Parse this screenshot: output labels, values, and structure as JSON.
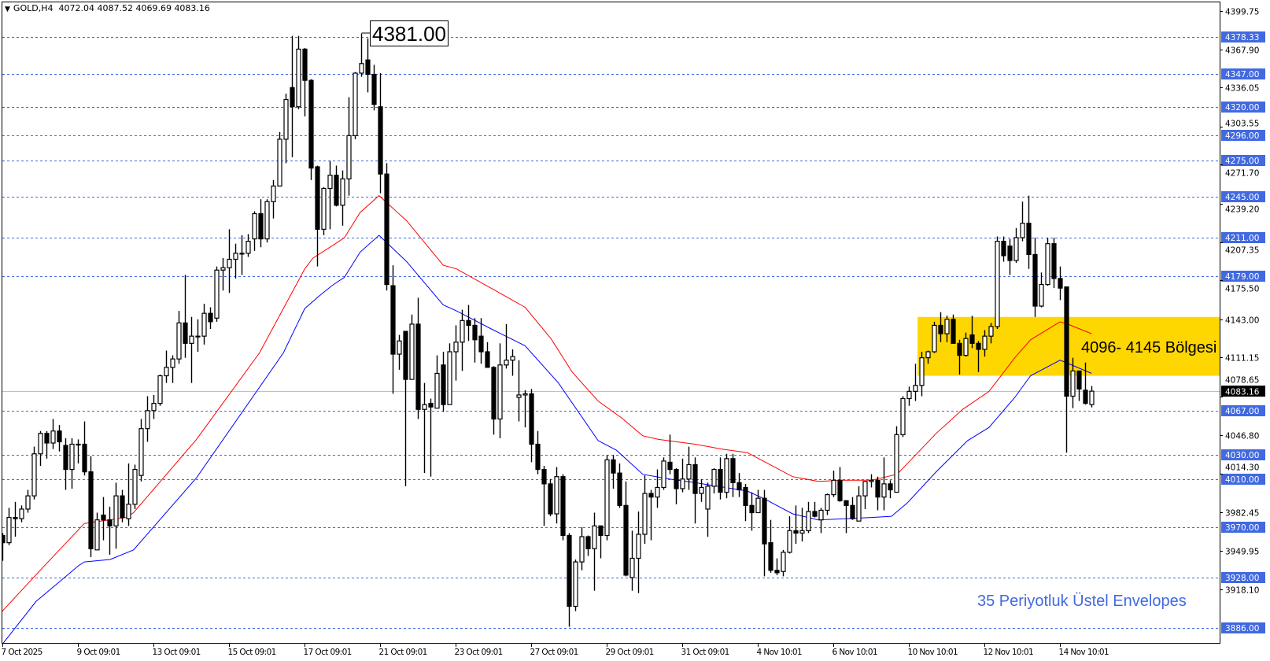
{
  "header": {
    "symbol": "GOLD,H4",
    "ohlc_text": "4072.04 4087.52 4069.69 4083.16"
  },
  "colors": {
    "level_line": "#4169E1",
    "level_label_bg": "#4169E1",
    "upper_envelope": "#FF0000",
    "lower_envelope": "#0000FF",
    "zone_fill": "#FFD700",
    "current_price_line": "#C0C0C0",
    "current_price_label_bg": "#000000",
    "note_text": "#4169E1"
  },
  "chart_data": {
    "type": "candlestick",
    "timeframe": "H4",
    "ylim": [
      3886.0,
      4399.75
    ],
    "grid": false,
    "y_ticks": [
      "4399.75",
      "4367.90",
      "4336.05",
      "4303.55",
      "4271.70",
      "4239.20",
      "4207.35",
      "4175.50",
      "4143.00",
      "4111.15",
      "4078.65",
      "4046.80",
      "4014.30",
      "3982.45",
      "3949.95",
      "3918.10"
    ],
    "x_ticks": [
      {
        "bar": 0,
        "label": "7 Oct 2025"
      },
      {
        "bar": 12,
        "label": "9 Oct 09:01"
      },
      {
        "bar": 24,
        "label": "13 Oct 09:01"
      },
      {
        "bar": 36,
        "label": "15 Oct 09:01"
      },
      {
        "bar": 48,
        "label": "17 Oct 09:01"
      },
      {
        "bar": 60,
        "label": "21 Oct 09:01"
      },
      {
        "bar": 72,
        "label": "23 Oct 09:01"
      },
      {
        "bar": 84,
        "label": "27 Oct 09:01"
      },
      {
        "bar": 96,
        "label": "29 Oct 09:01"
      },
      {
        "bar": 108,
        "label": "31 Oct 09:01"
      },
      {
        "bar": 120,
        "label": "4 Nov 10:01"
      },
      {
        "bar": 132,
        "label": "6 Nov 10:01"
      },
      {
        "bar": 144,
        "label": "10 Nov 10:01"
      },
      {
        "bar": 156,
        "label": "12 Nov 10:01"
      },
      {
        "bar": 168,
        "label": "14 Nov 10:01"
      }
    ],
    "ohlc": [
      [
        3963,
        3965,
        3942,
        3957
      ],
      [
        3957,
        3986,
        3955,
        3978
      ],
      [
        3978,
        3991,
        3962,
        3977
      ],
      [
        3977,
        3988,
        3974,
        3985
      ],
      [
        3985,
        4001,
        3982,
        3996
      ],
      [
        3996,
        4037,
        3993,
        4031
      ],
      [
        4031,
        4050,
        4021,
        4048
      ],
      [
        4048,
        4050,
        4027,
        4040
      ],
      [
        4040,
        4060,
        4035,
        4050
      ],
      [
        4050,
        4055,
        4033,
        4041
      ],
      [
        4038,
        4044,
        4001,
        4018
      ],
      [
        4018,
        4044,
        4002,
        4039
      ],
      [
        4039,
        4043,
        4023,
        4039
      ],
      [
        4039,
        4058,
        4013,
        4016
      ],
      [
        4016,
        4029,
        3945,
        3952
      ],
      [
        3951,
        3982,
        3951,
        3976
      ],
      [
        3980,
        3995,
        3959,
        3976
      ],
      [
        3976,
        3987,
        3947,
        3971
      ],
      [
        3971,
        4007,
        3952,
        3996
      ],
      [
        3996,
        4001,
        3974,
        3978
      ],
      [
        3977,
        4023,
        3971,
        3989
      ],
      [
        3989,
        4022,
        3985,
        4018
      ],
      [
        4013,
        4060,
        4008,
        4052
      ],
      [
        4052,
        4079,
        4041,
        4067
      ],
      [
        4067,
        4080,
        4060,
        4073
      ],
      [
        4073,
        4097,
        4071,
        4096
      ],
      [
        4096,
        4117,
        4090,
        4103
      ],
      [
        4103,
        4113,
        4090,
        4110
      ],
      [
        4110,
        4150,
        4106,
        4140
      ],
      [
        4140,
        4180,
        4111,
        4123
      ],
      [
        4123,
        4145,
        4090,
        4129
      ],
      [
        4129,
        4143,
        4116,
        4129
      ],
      [
        4129,
        4156,
        4122,
        4148
      ],
      [
        4148,
        4153,
        4135,
        4141
      ],
      [
        4144,
        4187,
        4141,
        4184
      ],
      [
        4184,
        4194,
        4167,
        4186
      ],
      [
        4186,
        4218,
        4165,
        4193
      ],
      [
        4193,
        4206,
        4177,
        4198
      ],
      [
        4198,
        4213,
        4180,
        4198
      ],
      [
        4198,
        4214,
        4195,
        4208
      ],
      [
        4210,
        4233,
        4200,
        4231
      ],
      [
        4231,
        4243,
        4203,
        4210
      ],
      [
        4210,
        4243,
        4207,
        4241
      ],
      [
        4241,
        4259,
        4227,
        4254
      ],
      [
        4254,
        4299,
        4254,
        4293
      ],
      [
        4293,
        4331,
        4273,
        4326
      ],
      [
        4336,
        4379,
        4278,
        4320
      ],
      [
        4320,
        4379,
        4318,
        4368
      ],
      [
        4368,
        4369,
        4312,
        4342
      ],
      [
        4342,
        4343,
        4259,
        4269
      ],
      [
        4270,
        4271,
        4187,
        4218
      ],
      [
        4218,
        4253,
        4213,
        4252
      ],
      [
        4252,
        4275,
        4218,
        4263
      ],
      [
        4263,
        4271,
        4237,
        4238
      ],
      [
        4238,
        4267,
        4221,
        4260
      ],
      [
        4260,
        4328,
        4246,
        4296
      ],
      [
        4296,
        4349,
        4293,
        4348
      ],
      [
        4348,
        4381,
        4345,
        4356
      ],
      [
        4359,
        4377,
        4332,
        4347
      ],
      [
        4347,
        4355,
        4317,
        4322
      ],
      [
        4320,
        4348,
        4248,
        4264
      ],
      [
        4264,
        4273,
        4167,
        4172
      ],
      [
        4171,
        4188,
        4081,
        4114
      ],
      [
        4114,
        4130,
        4101,
        4125
      ],
      [
        4133,
        4133,
        4004,
        4093
      ],
      [
        4093,
        4147,
        4093,
        4139
      ],
      [
        4139,
        4161,
        4060,
        4068
      ],
      [
        4068,
        4090,
        4015,
        4072
      ],
      [
        4073,
        4077,
        4012,
        4070
      ],
      [
        4069,
        4113,
        4069,
        4098
      ],
      [
        4105,
        4116,
        4066,
        4072
      ],
      [
        4072,
        4123,
        4072,
        4116
      ],
      [
        4116,
        4138,
        4092,
        4124
      ],
      [
        4124,
        4151,
        4100,
        4142
      ],
      [
        4142,
        4155,
        4125,
        4138
      ],
      [
        4138,
        4144,
        4107,
        4126
      ],
      [
        4129,
        4144,
        4106,
        4116
      ],
      [
        4116,
        4124,
        4103,
        4103
      ],
      [
        4103,
        4104,
        4047,
        4060
      ],
      [
        4060,
        4123,
        4044,
        4105
      ],
      [
        4105,
        4139,
        4102,
        4109
      ],
      [
        4109,
        4118,
        4096,
        4112
      ],
      [
        4078,
        4109,
        4058,
        4080
      ],
      [
        4080,
        4084,
        4053,
        4081
      ],
      [
        4081,
        4085,
        4024,
        4039
      ],
      [
        4039,
        4050,
        4014,
        4018
      ],
      [
        4018,
        4021,
        3971,
        4006
      ],
      [
        4006,
        4010,
        3979,
        3981
      ],
      [
        3981,
        4020,
        3973,
        4012
      ],
      [
        4012,
        4014,
        3959,
        3963
      ],
      [
        3963,
        3965,
        3887,
        3904
      ],
      [
        3904,
        3943,
        3900,
        3941
      ],
      [
        3941,
        3970,
        3934,
        3962
      ],
      [
        3962,
        3963,
        3946,
        3952
      ],
      [
        3952,
        3982,
        3917,
        3971
      ],
      [
        3971,
        3971,
        3944,
        3963
      ],
      [
        3963,
        4030,
        3959,
        4026
      ],
      [
        4026,
        4030,
        4002,
        4015
      ],
      [
        4015,
        4023,
        3986,
        3988
      ],
      [
        3988,
        4008,
        3929,
        3930
      ],
      [
        3928,
        3967,
        3917,
        3944
      ],
      [
        3944,
        3983,
        3915,
        3964
      ],
      [
        3964,
        4013,
        3956,
        3998
      ],
      [
        3998,
        4001,
        3959,
        3995
      ],
      [
        3995,
        4018,
        3986,
        4003
      ],
      [
        4003,
        4028,
        4001,
        4025
      ],
      [
        4024,
        4047,
        4014,
        4018
      ],
      [
        4018,
        4019,
        3989,
        4002
      ],
      [
        4002,
        4027,
        3999,
        4010
      ],
      [
        4010,
        4037,
        4001,
        4022
      ],
      [
        4022,
        4028,
        3973,
        3998
      ],
      [
        3998,
        4010,
        3991,
        4003
      ],
      [
        3985,
        4007,
        3962,
        4004
      ],
      [
        4004,
        4019,
        3998,
        4018
      ],
      [
        4018,
        4028,
        3993,
        3999
      ],
      [
        3999,
        4031,
        3994,
        4027
      ],
      [
        4027,
        4031,
        3995,
        4007
      ],
      [
        4007,
        4015,
        3995,
        4001
      ],
      [
        4003,
        4006,
        3975,
        3988
      ],
      [
        3988,
        3999,
        3967,
        3982
      ],
      [
        3982,
        4001,
        3982,
        3994
      ],
      [
        3994,
        4001,
        3929,
        3956
      ],
      [
        3957,
        3976,
        3932,
        3934
      ],
      [
        3934,
        3944,
        3930,
        3932
      ],
      [
        3933,
        3951,
        3929,
        3949
      ],
      [
        3949,
        3979,
        3948,
        3967
      ],
      [
        3967,
        3988,
        3956,
        3965
      ],
      [
        3965,
        3986,
        3958,
        3967
      ],
      [
        3967,
        3991,
        3965,
        3983
      ],
      [
        3983,
        3991,
        3978,
        3979
      ],
      [
        3976,
        3986,
        3965,
        3984
      ],
      [
        3984,
        3998,
        3980,
        3997
      ],
      [
        3997,
        4017,
        3995,
        4009
      ],
      [
        4009,
        4020,
        3991,
        3992
      ],
      [
        3992,
        3992,
        3965,
        3988
      ],
      [
        3988,
        3995,
        3976,
        3977
      ],
      [
        3975,
        4004,
        3975,
        3996
      ],
      [
        3996,
        4008,
        3985,
        4008
      ],
      [
        4008,
        4014,
        4003,
        4009
      ],
      [
        4009,
        4012,
        3984,
        3995
      ],
      [
        3995,
        4028,
        3984,
        4006
      ],
      [
        4006,
        4009,
        3994,
        4001
      ],
      [
        3999,
        4054,
        3999,
        4047
      ],
      [
        4047,
        4079,
        4045,
        4077
      ],
      [
        4077,
        4087,
        4071,
        4083
      ],
      [
        4083,
        4106,
        4075,
        4088
      ],
      [
        4088,
        4116,
        4079,
        4111
      ],
      [
        4111,
        4117,
        4106,
        4116
      ],
      [
        4116,
        4141,
        4115,
        4138
      ],
      [
        4138,
        4149,
        4124,
        4131
      ],
      [
        4131,
        4146,
        4124,
        4143
      ],
      [
        4143,
        4147,
        4123,
        4123
      ],
      [
        4123,
        4126,
        4097,
        4113
      ],
      [
        4113,
        4132,
        4112,
        4127
      ],
      [
        4130,
        4146,
        4119,
        4123
      ],
      [
        4123,
        4125,
        4099,
        4118
      ],
      [
        4118,
        4134,
        4112,
        4129
      ],
      [
        4129,
        4140,
        4123,
        4137
      ],
      [
        4137,
        4212,
        4135,
        4208
      ],
      [
        4208,
        4212,
        4191,
        4196
      ],
      [
        4204,
        4210,
        4180,
        4192
      ],
      [
        4192,
        4219,
        4190,
        4211
      ],
      [
        4211,
        4241,
        4208,
        4223
      ],
      [
        4223,
        4246,
        4185,
        4197
      ],
      [
        4197,
        4211,
        4145,
        4154
      ],
      [
        4154,
        4182,
        4153,
        4172
      ],
      [
        4172,
        4211,
        4171,
        4206
      ],
      [
        4206,
        4211,
        4169,
        4177
      ],
      [
        4177,
        4187,
        4159,
        4169
      ],
      [
        4170,
        4170,
        4032,
        4079
      ],
      [
        4079,
        4111,
        4069,
        4100
      ],
      [
        4100,
        4100,
        4075,
        4085
      ],
      [
        4084,
        4107,
        4072,
        4073
      ],
      [
        4072.04,
        4087.52,
        4069.69,
        4083.16
      ]
    ],
    "envelopes": {
      "upper": [
        [
          -0.4,
          3898
        ],
        [
          6.5,
          3937
        ],
        [
          13,
          3973
        ],
        [
          19.6,
          3978
        ],
        [
          20.8,
          3982
        ],
        [
          30.8,
          4043
        ],
        [
          40.8,
          4115
        ],
        [
          48,
          4185
        ],
        [
          49.3,
          4194
        ],
        [
          52.3,
          4204
        ],
        [
          54.3,
          4211
        ],
        [
          56.8,
          4232
        ],
        [
          59.8,
          4246
        ],
        [
          64.2,
          4225
        ],
        [
          70,
          4188
        ],
        [
          72.1,
          4185
        ],
        [
          78.6,
          4166
        ],
        [
          83,
          4153
        ],
        [
          87.1,
          4127
        ],
        [
          90.5,
          4099
        ],
        [
          94.6,
          4075
        ],
        [
          98.3,
          4061
        ],
        [
          101.7,
          4046
        ],
        [
          104.2,
          4043
        ],
        [
          110,
          4039
        ],
        [
          114.2,
          4035
        ],
        [
          118.3,
          4032
        ],
        [
          121.2,
          4024
        ],
        [
          125.5,
          4012
        ],
        [
          129.6,
          4008
        ],
        [
          133.7,
          4009
        ],
        [
          138,
          4009
        ],
        [
          142.1,
          4014
        ],
        [
          148.3,
          4048
        ],
        [
          152.5,
          4068
        ],
        [
          156.7,
          4083
        ],
        [
          160.8,
          4111
        ],
        [
          163.3,
          4126
        ],
        [
          168,
          4141
        ],
        [
          169.2,
          4139
        ],
        [
          173,
          4131
        ]
      ],
      "lower": [
        [
          -0.4,
          3870
        ],
        [
          5.3,
          3908
        ],
        [
          12.1,
          3938
        ],
        [
          13,
          3941
        ],
        [
          17.1,
          3943
        ],
        [
          20.8,
          3951
        ],
        [
          30.8,
          4011
        ],
        [
          44.6,
          4115
        ],
        [
          48,
          4152
        ],
        [
          50.2,
          4162
        ],
        [
          52.3,
          4171
        ],
        [
          54.3,
          4178
        ],
        [
          56.8,
          4199
        ],
        [
          59.8,
          4213
        ],
        [
          64.2,
          4191
        ],
        [
          70,
          4155
        ],
        [
          72.1,
          4150
        ],
        [
          78,
          4134
        ],
        [
          83,
          4121
        ],
        [
          88.3,
          4090
        ],
        [
          94.6,
          4042
        ],
        [
          97.5,
          4034
        ],
        [
          101.7,
          4014
        ],
        [
          105.9,
          4010
        ],
        [
          110,
          4007
        ],
        [
          118.3,
          4000
        ],
        [
          121.2,
          3993
        ],
        [
          125.5,
          3981
        ],
        [
          129.6,
          3976
        ],
        [
          138,
          3978
        ],
        [
          141.2,
          3979
        ],
        [
          143.7,
          3990
        ],
        [
          148.3,
          4016
        ],
        [
          153.3,
          4042
        ],
        [
          156.7,
          4053
        ],
        [
          160.8,
          4078
        ],
        [
          163.3,
          4096
        ],
        [
          168,
          4109
        ],
        [
          173,
          4098
        ]
      ]
    },
    "levels": [
      "4378.33",
      "4347.00",
      "4320.00",
      "4296.00",
      "4275.00",
      "4245.00",
      "4211.00",
      "4179.00",
      "4067.00",
      "4030.00",
      "4010.00",
      "3970.00",
      "3928.00",
      "3886.00"
    ],
    "current_price": "4083.16",
    "zone": {
      "from": 4096,
      "to": 4145,
      "start_bar": 145.6,
      "label": "4096- 4145 Bölgesi"
    },
    "high_marker": {
      "bar": 57,
      "value": 4381.0,
      "label": "4381.00"
    },
    "note": "35 Periyotluk Üstel Envelopes"
  }
}
